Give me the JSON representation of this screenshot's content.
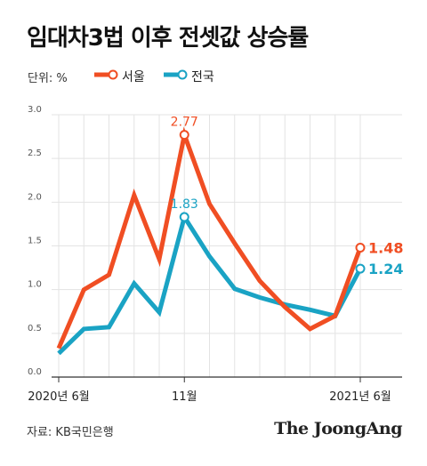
{
  "header": {
    "title": "임대차3법 이후 전셋값 상승률",
    "unit": "단위: %"
  },
  "footer": {
    "source": "자료: KB국민은행",
    "brand": "The JoongAng"
  },
  "colors": {
    "seoul": "#f04e23",
    "national": "#1aa3c4",
    "grid": "#e3e3e3",
    "axis": "#333333"
  },
  "chart_data": {
    "type": "line",
    "title": "임대차3법 이후 전셋값 상승률",
    "ylabel": "단위: %",
    "xlabel": "",
    "ylim": [
      0,
      3.0
    ],
    "yticks": [
      "0.0",
      "0.5",
      "1.0",
      "1.5",
      "2.0",
      "2.5",
      "3.0"
    ],
    "x_tick_labels": [
      {
        "index": 0,
        "label": "2020년 6월"
      },
      {
        "index": 5,
        "label": "11월"
      },
      {
        "index": 12,
        "label": "2021년 6월"
      }
    ],
    "grid": true,
    "legend": "top-left",
    "series": [
      {
        "name": "서울",
        "color": "#f04e23",
        "values": [
          0.33,
          1.0,
          1.17,
          2.08,
          1.35,
          2.77,
          1.98,
          1.53,
          1.1,
          0.8,
          0.55,
          0.7,
          1.48
        ],
        "labels": [
          {
            "index": 5,
            "text": "2.77"
          },
          {
            "index": 12,
            "text": "1.48"
          }
        ]
      },
      {
        "name": "전국",
        "color": "#1aa3c4",
        "values": [
          0.27,
          0.55,
          0.57,
          1.07,
          0.74,
          1.83,
          1.38,
          1.01,
          0.91,
          0.83,
          0.77,
          0.7,
          1.24
        ],
        "labels": [
          {
            "index": 5,
            "text": "1.83"
          },
          {
            "index": 12,
            "text": "1.24"
          }
        ]
      }
    ]
  }
}
